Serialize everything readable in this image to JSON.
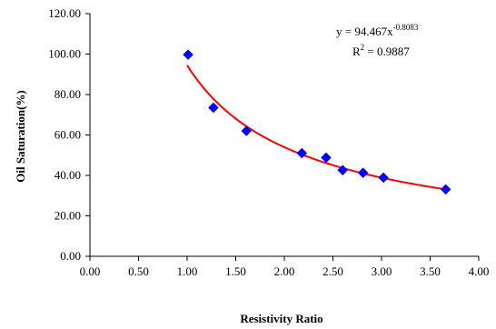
{
  "chart_data": {
    "type": "scatter",
    "title": "",
    "xlabel": "Resistivity Ratio",
    "ylabel": "Oil Saturation(%)",
    "xlim": [
      0,
      4
    ],
    "ylim": [
      0,
      120
    ],
    "x_ticks": [
      "0.00",
      "0.50",
      "1.00",
      "1.50",
      "2.00",
      "2.50",
      "3.00",
      "3.50",
      "4.00"
    ],
    "y_ticks": [
      "0.00",
      "20.00",
      "40.00",
      "60.00",
      "80.00",
      "100.00",
      "120.00"
    ],
    "grid": false,
    "series": [
      {
        "marker": "diamond",
        "color": "#0000ff",
        "points": [
          {
            "x": 1.01,
            "y": 99.7
          },
          {
            "x": 1.27,
            "y": 73.5
          },
          {
            "x": 1.61,
            "y": 62.0
          },
          {
            "x": 2.18,
            "y": 51.0
          },
          {
            "x": 2.43,
            "y": 48.8
          },
          {
            "x": 2.6,
            "y": 42.6
          },
          {
            "x": 2.81,
            "y": 41.3
          },
          {
            "x": 3.02,
            "y": 38.9
          },
          {
            "x": 3.66,
            "y": 33.1
          }
        ]
      }
    ],
    "trendline": {
      "type": "power",
      "coefficient": 94.467,
      "exponent": -0.8083,
      "x_range": [
        1.0,
        3.65
      ],
      "color": "#ff0000"
    },
    "annotation": {
      "equation_prefix": "y = 94.467x",
      "equation_exponent": "-0.8083",
      "r2_prefix": "R",
      "r2_superscript": "2",
      "r2_suffix": " = 0.9887"
    }
  }
}
